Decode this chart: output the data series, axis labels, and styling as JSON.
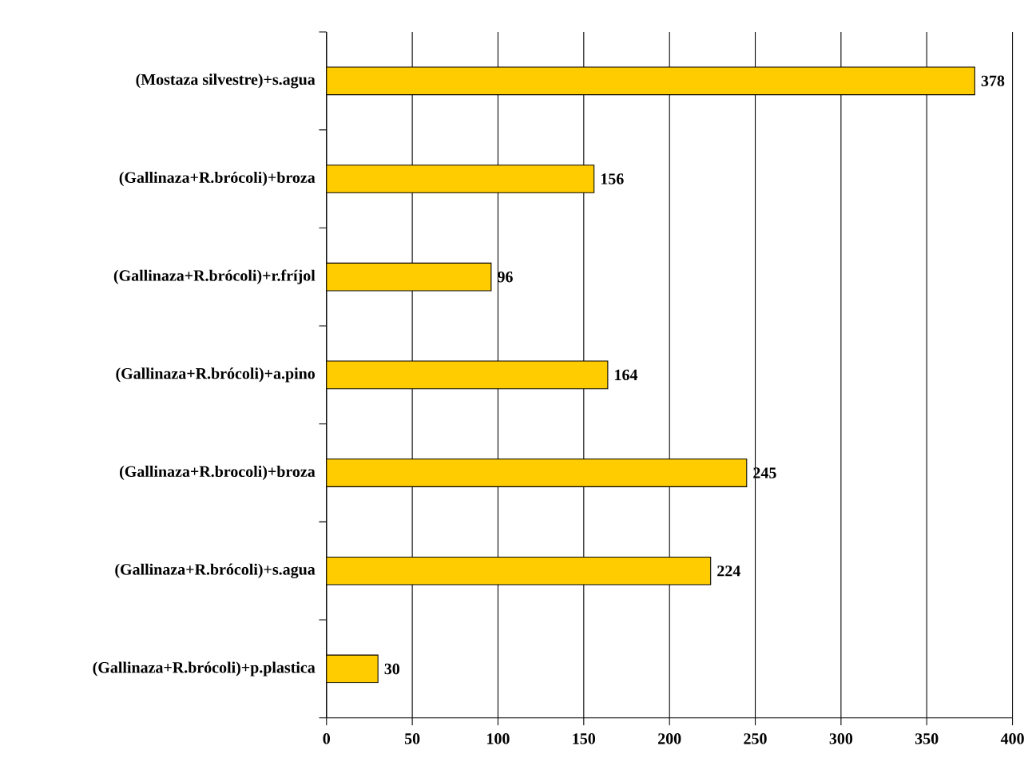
{
  "chart_data": {
    "type": "bar",
    "orientation": "horizontal",
    "categories": [
      "(Mostaza silvestre)+s.agua",
      "(Gallinaza+R.brócoli)+broza",
      "(Gallinaza+R.brócoli)+r.fríjol",
      "(Gallinaza+R.brócoli)+a.pino",
      "(Gallinaza+R.brocoli)+broza",
      "(Gallinaza+R.brócoli)+s.agua",
      "(Gallinaza+R.brócoli)+p.plastica"
    ],
    "values": [
      378,
      156,
      96,
      164,
      245,
      224,
      30
    ],
    "color": "#ffcc00",
    "data_labels": true,
    "xlim": [
      0,
      400
    ],
    "xticks": [
      0,
      50,
      100,
      150,
      200,
      250,
      300,
      350,
      400
    ],
    "grid": "x"
  }
}
